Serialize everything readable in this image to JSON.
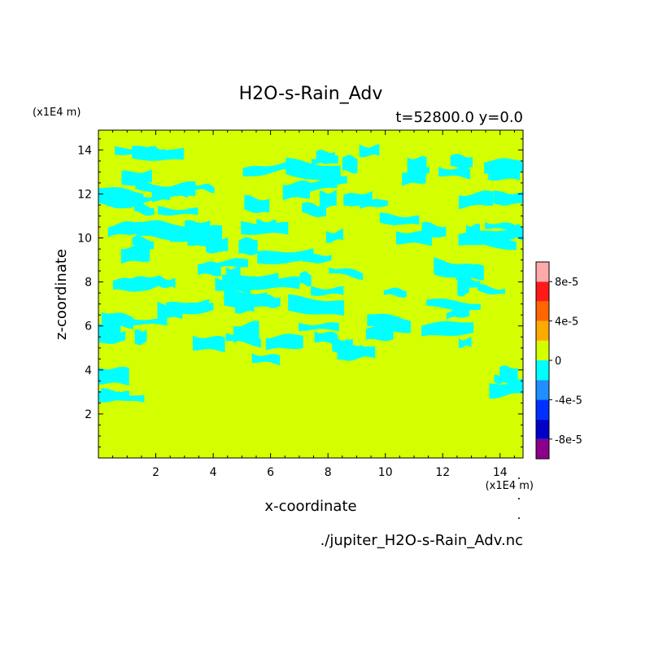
{
  "chart_data": {
    "type": "heatmap",
    "title": "H2O-s-Rain_Adv",
    "subtitle": "t=52800.0 y=0.0",
    "xlabel": "x-coordinate",
    "ylabel": "z-coordinate",
    "x_unit_label": "(x1E4 m)",
    "y_unit_label": "(x1E4 m)",
    "footer": "./jupiter_H2O-s-Rain_Adv.nc",
    "xlim": [
      0,
      14.8
    ],
    "ylim": [
      0,
      14.9
    ],
    "x_ticks": [
      2,
      4,
      6,
      8,
      10,
      12,
      14
    ],
    "y_ticks": [
      2,
      4,
      6,
      8,
      10,
      12,
      14
    ],
    "colorbar": {
      "min": -0.0001,
      "max": 0.0001,
      "levels": [
        -0.0001,
        -8e-05,
        -6e-05,
        -4e-05,
        -2e-05,
        0,
        2e-05,
        4e-05,
        6e-05,
        8e-05,
        0.0001
      ],
      "colors": [
        "#8b008b",
        "#0000c8",
        "#0030ff",
        "#1e8fff",
        "#00ffff",
        "#d4ff00",
        "#ffaa00",
        "#ff6600",
        "#ff1a1a",
        "#ffaaaa"
      ],
      "tick_values": [
        -8e-05,
        -4e-05,
        0,
        4e-05,
        8e-05
      ],
      "tick_labels": [
        "-8e-5",
        "-4e-5",
        "0",
        "4e-5",
        "8e-5"
      ]
    },
    "field": {
      "background_level": "0",
      "background_color": "#d4ff00",
      "negative_color": "#00ffff",
      "negative_regions": [
        {
          "x": [
            0.3,
            3.8
          ],
          "z": [
            13.8,
            14.0
          ]
        },
        {
          "x": [
            6.2,
            13.5
          ],
          "z": [
            13.0,
            14.0
          ]
        },
        {
          "x": [
            0.0,
            14.8
          ],
          "z": [
            12.7,
            13.3
          ]
        },
        {
          "x": [
            0.4,
            14.8
          ],
          "z": [
            11.2,
            12.5
          ]
        },
        {
          "x": [
            0.0,
            14.8
          ],
          "z": [
            9.0,
            10.9
          ]
        },
        {
          "x": [
            0.3,
            14.5
          ],
          "z": [
            7.5,
            8.9
          ]
        },
        {
          "x": [
            0.3,
            12.8
          ],
          "z": [
            5.2,
            7.4
          ]
        },
        {
          "x": [
            3.3,
            10.0
          ],
          "z": [
            4.4,
            5.1
          ]
        },
        {
          "x": [
            0.0,
            2.5
          ],
          "z": [
            2.6,
            4.5
          ]
        },
        {
          "x": [
            13.8,
            14.8
          ],
          "z": [
            2.9,
            4.3
          ]
        }
      ]
    }
  }
}
